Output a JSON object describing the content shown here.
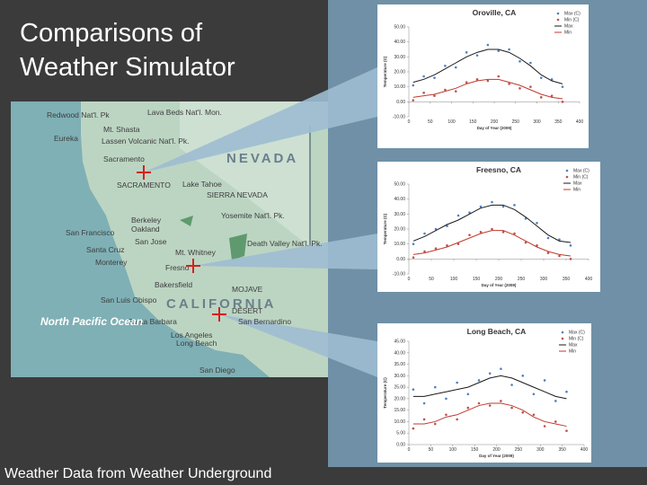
{
  "slide_title": [
    "Comparisons of",
    "Weather Simulator"
  ],
  "footer": "Weather Data from Weather Underground",
  "map": {
    "labels": [
      "Redwood Nat'l. Pk",
      "Lava Beds Nat'l. Mon.",
      "Mt. Shasta",
      "Eureka",
      "Lassen Volcanic Nat'l. Pk.",
      "Sacramento",
      "NEVADA",
      "SACRAMENTO",
      "Lake Tahoe",
      "SIERRA NEVADA",
      "Berkeley",
      "Oakland",
      "San Francisco",
      "Yosemite Nat'l. Pk.",
      "San Jose",
      "Santa Cruz",
      "Monterey",
      "Death Valley Nat'l. Pk.",
      "Mt. Whitney",
      "Fresno",
      "Bakersfield",
      "CALIFORNIA",
      "MOJAVE",
      "DESERT",
      "San Luis Obispo",
      "Santa Barbara",
      "San Bernardino",
      "Los Angeles",
      "Long Beach",
      "San Diego",
      "North Pacific Ocean"
    ]
  },
  "chart_data": [
    {
      "type": "scatter",
      "title": "Oroville, CA",
      "x_label": "Day of Year (2009)",
      "y_label": "Temperature (C)",
      "x": [
        10,
        35,
        60,
        85,
        110,
        135,
        160,
        185,
        210,
        235,
        260,
        285,
        310,
        335,
        360
      ],
      "xlim": [
        0,
        400
      ],
      "xticks": [
        0,
        50,
        100,
        150,
        200,
        250,
        300,
        350,
        400
      ],
      "ylim": [
        -10,
        50
      ],
      "yticks": [
        {
          "value": -10,
          "label": "-10.00"
        },
        {
          "value": 0,
          "label": "0.00"
        },
        {
          "value": 10,
          "label": "10.00"
        },
        {
          "value": 20,
          "label": "20.00"
        },
        {
          "value": 30,
          "label": "30.00"
        },
        {
          "value": 40,
          "label": "40.00"
        },
        {
          "value": 50,
          "label": "50.00"
        }
      ],
      "series": [
        {
          "name": "Max (C)",
          "style": "markers",
          "color": "#4f81bd",
          "values": [
            11,
            17,
            16,
            24,
            23,
            33,
            31,
            38,
            34,
            35,
            27,
            26,
            16,
            15,
            10
          ]
        },
        {
          "name": "Min (C)",
          "style": "markers",
          "color": "#c0504d",
          "values": [
            1,
            6,
            4,
            8,
            7,
            13,
            15,
            14,
            17,
            12,
            9,
            10,
            3,
            4,
            0
          ]
        },
        {
          "name": "Max",
          "style": "line",
          "color": "#1a1a1a",
          "values": [
            13,
            15,
            18,
            22,
            26,
            30,
            33,
            35,
            35,
            33,
            29,
            24,
            18,
            14,
            12
          ]
        },
        {
          "name": "Min",
          "style": "line",
          "color": "#c0392b",
          "values": [
            3,
            4,
            5,
            7,
            9,
            12,
            14,
            15,
            15,
            13,
            11,
            8,
            5,
            3,
            2
          ]
        }
      ]
    },
    {
      "type": "scatter",
      "title": "Freesno, CA",
      "x_label": "Day of Year (2009)",
      "y_label": "Temperature (C)",
      "x": [
        10,
        35,
        60,
        85,
        110,
        135,
        160,
        185,
        210,
        235,
        260,
        285,
        310,
        335,
        360
      ],
      "xlim": [
        0,
        400
      ],
      "xticks": [
        0,
        50,
        100,
        150,
        200,
        250,
        300,
        350,
        400
      ],
      "ylim": [
        -10,
        50
      ],
      "yticks": [
        {
          "value": -10,
          "label": "-10.00"
        },
        {
          "value": 0,
          "label": "0.00"
        },
        {
          "value": 10,
          "label": "10.00"
        },
        {
          "value": 20,
          "label": "20.00"
        },
        {
          "value": 30,
          "label": "30.00"
        },
        {
          "value": 40,
          "label": "40.00"
        },
        {
          "value": 50,
          "label": "50.00"
        }
      ],
      "series": [
        {
          "name": "Max (C)",
          "style": "markers",
          "color": "#4f81bd",
          "values": [
            10,
            17,
            20,
            22,
            29,
            31,
            35,
            38,
            35,
            36,
            27,
            24,
            14,
            13,
            9
          ]
        },
        {
          "name": "Min (C)",
          "style": "markers",
          "color": "#c0504d",
          "values": [
            1,
            5,
            7,
            9,
            10,
            16,
            18,
            20,
            18,
            17,
            11,
            9,
            4,
            2,
            0
          ]
        },
        {
          "name": "Max",
          "style": "line",
          "color": "#1a1a1a",
          "values": [
            12,
            15,
            19,
            23,
            26,
            30,
            34,
            36,
            36,
            33,
            28,
            22,
            16,
            12,
            11
          ]
        },
        {
          "name": "Min",
          "style": "line",
          "color": "#c0392b",
          "values": [
            3,
            4,
            6,
            8,
            11,
            14,
            17,
            19,
            19,
            16,
            12,
            8,
            5,
            3,
            2
          ]
        }
      ]
    },
    {
      "type": "scatter",
      "title": "Long Beach, CA",
      "x_label": "Day of Year (2009)",
      "y_label": "Temperature (C)",
      "x": [
        10,
        35,
        60,
        85,
        110,
        135,
        160,
        185,
        210,
        235,
        260,
        285,
        310,
        335,
        360
      ],
      "xlim": [
        0,
        400
      ],
      "xticks": [
        0,
        50,
        100,
        150,
        200,
        250,
        300,
        350,
        400
      ],
      "ylim": [
        0,
        45
      ],
      "yticks": [
        {
          "value": 0,
          "label": "0.00"
        },
        {
          "value": 5,
          "label": "5.00"
        },
        {
          "value": 10,
          "label": "10.00"
        },
        {
          "value": 15,
          "label": "15.00"
        },
        {
          "value": 20,
          "label": "20.00"
        },
        {
          "value": 25,
          "label": "25.00"
        },
        {
          "value": 30,
          "label": "30.00"
        },
        {
          "value": 35,
          "label": "35.00"
        },
        {
          "value": 40,
          "label": "40.00"
        },
        {
          "value": 45,
          "label": "45.00"
        }
      ],
      "series": [
        {
          "name": "Max (C)",
          "style": "markers",
          "color": "#4f81bd",
          "values": [
            24,
            18,
            25,
            20,
            27,
            22,
            28,
            31,
            33,
            26,
            30,
            22,
            28,
            19,
            23
          ]
        },
        {
          "name": "Min (C)",
          "style": "markers",
          "color": "#c0504d",
          "values": [
            7,
            11,
            9,
            13,
            11,
            16,
            18,
            17,
            19,
            16,
            14,
            13,
            8,
            10,
            6
          ]
        },
        {
          "name": "Max",
          "style": "line",
          "color": "#1a1a1a",
          "values": [
            21,
            21,
            22,
            23,
            24,
            25,
            27,
            29,
            30,
            29,
            27,
            25,
            23,
            21,
            20
          ]
        },
        {
          "name": "Min",
          "style": "line",
          "color": "#c0392b",
          "values": [
            9,
            9,
            10,
            12,
            13,
            15,
            17,
            18,
            18,
            17,
            15,
            12,
            10,
            9,
            8
          ]
        }
      ]
    }
  ]
}
